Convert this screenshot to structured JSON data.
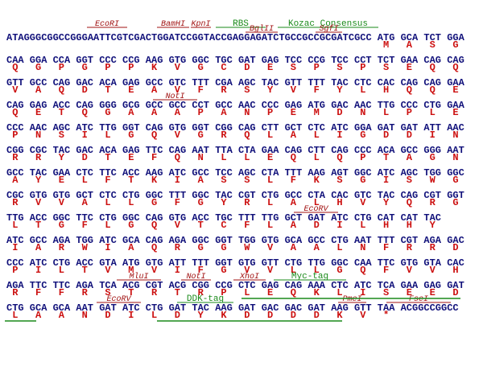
{
  "rows": [
    {
      "leader": "ATAGGGCGGCCGGGAATTCGTCGACTGGATCCGGTACCGAGGAGATCTGCCGCCGCGATCGCC",
      "codons": [
        "ATG",
        "GCA",
        "TCT",
        "GGA"
      ],
      "aa": [
        "M",
        "A",
        "S",
        "G"
      ]
    },
    {
      "codons": [
        "CAA",
        "GGA",
        "CCA",
        "GGT",
        "CCC",
        "CCG",
        "AAG",
        "GTG",
        "GGC",
        "TGC",
        "GAT",
        "GAG",
        "TCC",
        "CCG",
        "TCC",
        "CCT",
        "TCT",
        "GAA",
        "CAG",
        "CAG"
      ],
      "aa": [
        "Q",
        "G",
        "P",
        "G",
        "P",
        "P",
        "K",
        "V",
        "G",
        "C",
        "D",
        "E",
        "S",
        "P",
        "S",
        "P",
        "S",
        "E",
        "Q",
        "Q"
      ]
    },
    {
      "codons": [
        "GTT",
        "GCC",
        "CAG",
        "GAC",
        "ACA",
        "GAG",
        "GCC",
        "GTC",
        "TTT",
        "CGA",
        "AGC",
        "TAC",
        "GTT",
        "TTT",
        "TAC",
        "CTC",
        "CAC",
        "CAG",
        "CAG",
        "GAA"
      ],
      "aa": [
        "V",
        "A",
        "Q",
        "D",
        "T",
        "E",
        "A",
        "V",
        "F",
        "R",
        "S",
        "Y",
        "V",
        "F",
        "Y",
        "L",
        "H",
        "Q",
        "Q",
        "E"
      ]
    },
    {
      "codons": [
        "CAG",
        "GAG",
        "ACC",
        "CAG",
        "GGG",
        "GCG",
        "GCC",
        "GCC",
        "CCT",
        "GCC",
        "AAC",
        "CCC",
        "GAG",
        "ATG",
        "GAC",
        "AAC",
        "TTG",
        "CCC",
        "CTG",
        "GAA"
      ],
      "aa": [
        "Q",
        "E",
        "T",
        "Q",
        "G",
        "A",
        "A",
        "A",
        "P",
        "A",
        "N",
        "P",
        "E",
        "M",
        "D",
        "N",
        "L",
        "P",
        "L",
        "E"
      ]
    },
    {
      "codons": [
        "CCC",
        "AAC",
        "AGC",
        "ATC",
        "TTG",
        "GGT",
        "CAG",
        "GTG",
        "GGT",
        "CGG",
        "CAG",
        "CTT",
        "GCT",
        "CTC",
        "ATC",
        "GGA",
        "GAT",
        "GAT",
        "ATT",
        "AAC"
      ],
      "aa": [
        "P",
        "N",
        "S",
        "I",
        "L",
        "G",
        "Q",
        "V",
        "G",
        "R",
        "Q",
        "L",
        "A",
        "L",
        "I",
        "G",
        "D",
        "D",
        "I",
        "N"
      ]
    },
    {
      "codons": [
        "CGG",
        "CGC",
        "TAC",
        "GAC",
        "ACA",
        "GAG",
        "TTC",
        "CAG",
        "AAT",
        "TTA",
        "CTA",
        "GAA",
        "CAG",
        "CTT",
        "CAG",
        "CCC",
        "ACA",
        "GCC",
        "GGG",
        "AAT"
      ],
      "aa": [
        "R",
        "R",
        "Y",
        "D",
        "T",
        "E",
        "F",
        "Q",
        "N",
        "L",
        "L",
        "E",
        "Q",
        "L",
        "Q",
        "P",
        "T",
        "A",
        "G",
        "N"
      ]
    },
    {
      "codons": [
        "GCC",
        "TAC",
        "GAA",
        "CTC",
        "TTC",
        "ACC",
        "AAG",
        "ATC",
        "GCC",
        "TCC",
        "AGC",
        "CTA",
        "TTT",
        "AAG",
        "AGT",
        "GGC",
        "ATC",
        "AGC",
        "TGG",
        "GGC"
      ],
      "aa": [
        "A",
        "Y",
        "E",
        "L",
        "F",
        "T",
        "K",
        "I",
        "A",
        "S",
        "S",
        "L",
        "F",
        "K",
        "S",
        "G",
        "I",
        "S",
        "W",
        "G"
      ]
    },
    {
      "codons": [
        "CGC",
        "GTG",
        "GTG",
        "GCT",
        "CTC",
        "CTG",
        "GGC",
        "TTT",
        "GGC",
        "TAC",
        "CGT",
        "CTG",
        "GCC",
        "CTA",
        "CAC",
        "GTC",
        "TAC",
        "CAG",
        "CGT",
        "GGT"
      ],
      "aa": [
        "R",
        "V",
        "V",
        "A",
        "L",
        "L",
        "G",
        "F",
        "G",
        "Y",
        "R",
        "L",
        "A",
        "L",
        "H",
        "V",
        "Y",
        "Q",
        "R",
        "G"
      ]
    },
    {
      "codons": [
        "TTG",
        "ACC",
        "GGC",
        "TTC",
        "CTG",
        "GGC",
        "CAG",
        "GTG",
        "ACC",
        "TGC",
        "TTT",
        "TTG",
        "GCT",
        "GAT",
        "ATC",
        "CTG",
        "CAT",
        "CAT",
        "TAC"
      ],
      "aa": [
        "L",
        "T",
        "G",
        "F",
        "L",
        "G",
        "Q",
        "V",
        "T",
        "C",
        "F",
        "L",
        "A",
        "D",
        "I",
        "L",
        "H",
        "H",
        "Y"
      ]
    },
    {
      "codons": [
        "ATC",
        "GCC",
        "AGA",
        "TGG",
        "ATC",
        "GCA",
        "CAG",
        "AGA",
        "GGC",
        "GGT",
        "TGG",
        "GTG",
        "GCA",
        "GCC",
        "CTG",
        "AAT",
        "TTT",
        "CGT",
        "AGA",
        "GAC"
      ],
      "aa": [
        "I",
        "A",
        "R",
        "W",
        "I",
        "A",
        "Q",
        "R",
        "G",
        "G",
        "W",
        "V",
        "A",
        "A",
        "L",
        "N",
        "F",
        "R",
        "R",
        "D"
      ]
    },
    {
      "codons": [
        "CCC",
        "ATC",
        "CTG",
        "ACC",
        "GTA",
        "ATG",
        "GTG",
        "ATT",
        "TTT",
        "GGT",
        "GTG",
        "GTT",
        "CTG",
        "TTG",
        "GGC",
        "CAA",
        "TTC",
        "GTG",
        "GTA",
        "CAC"
      ],
      "aa": [
        "P",
        "I",
        "L",
        "T",
        "V",
        "M",
        "V",
        "I",
        "F",
        "G",
        "V",
        "V",
        "L",
        "L",
        "G",
        "Q",
        "F",
        "V",
        "V",
        "H"
      ]
    },
    {
      "codons": [
        "AGA",
        "TTC",
        "TTC",
        "AGA",
        "TCA",
        "ACG",
        "CGT",
        "ACG",
        "CGG",
        "CCG",
        "CTC",
        "GAG",
        "CAG",
        "AAA",
        "CTC",
        "ATC",
        "TCA",
        "GAA",
        "GAG",
        "GAT"
      ],
      "aa": [
        "R",
        "F",
        "F",
        "R",
        "S",
        "T",
        "R",
        "T",
        "R",
        "P",
        "L",
        "E",
        "Q",
        "K",
        "L",
        "I",
        "S",
        "E",
        "E",
        "D"
      ]
    },
    {
      "codons": [
        "CTG",
        "GCA",
        "GCA",
        "AAT",
        "GAT",
        "ATC",
        "CTG",
        "GAT",
        "TAC",
        "AAG",
        "GAT",
        "GAC",
        "GAC",
        "GAT",
        "AAG",
        "GTT",
        "TAA"
      ],
      "aa": [
        "L",
        "A",
        "A",
        "N",
        "D",
        "I",
        "L",
        "D",
        "Y",
        "K",
        "D",
        "D",
        "D",
        "D",
        "K",
        "V",
        "*"
      ],
      "trailer": "ACGGCCGGCC"
    }
  ],
  "features": [
    {
      "label": "EcoRI",
      "color": "#a01010"
    },
    {
      "label": "BamHI",
      "color": "#a01010"
    },
    {
      "label": "KpnI",
      "color": "#a01010"
    },
    {
      "label": "RBS",
      "color": "#1a8a1a"
    },
    {
      "label": "BglII",
      "color": "#a01010"
    },
    {
      "label": "Kozac Consensus",
      "color": "#1a8a1a"
    },
    {
      "label": "SgfI",
      "color": "#a01010"
    },
    {
      "label": "NotI",
      "color": "#a01010"
    },
    {
      "label": "EcoRV",
      "color": "#a01010"
    },
    {
      "label": "MluI",
      "color": "#a01010"
    },
    {
      "label": "NotI",
      "color": "#a01010"
    },
    {
      "label": "XhoI",
      "color": "#a01010"
    },
    {
      "label": "Myc-tag",
      "color": "#1a8a1a"
    },
    {
      "label": "EcoRV",
      "color": "#a01010"
    },
    {
      "label": "DDK-tag",
      "color": "#1a8a1a"
    },
    {
      "label": "PmeI",
      "color": "#a01010"
    },
    {
      "label": "FseI",
      "color": "#a01010"
    }
  ]
}
